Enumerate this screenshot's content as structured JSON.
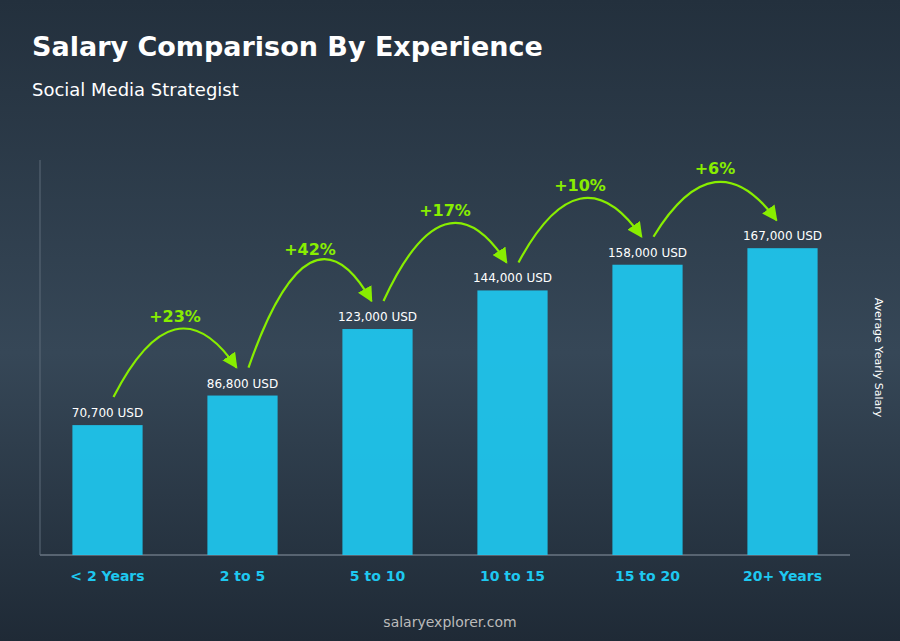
{
  "chart_data": {
    "type": "bar",
    "title": "Salary Comparison By Experience",
    "subtitle": "Social Media Strategist",
    "ylabel": "Average Yearly Salary",
    "categories": [
      "< 2 Years",
      "2 to 5",
      "5 to 10",
      "10 to 15",
      "15 to 20",
      "20+ Years"
    ],
    "values": [
      70700,
      86800,
      123000,
      144000,
      158000,
      167000
    ],
    "value_labels": [
      "70,700 USD",
      "86,800 USD",
      "123,000 USD",
      "144,000 USD",
      "158,000 USD",
      "167,000 USD"
    ],
    "data_labels": true,
    "color": "#1EC8F0",
    "ylim": [
      0,
      215000
    ],
    "tick_labels": "x",
    "grid": false,
    "annotations": [
      {
        "text": "+23%",
        "color": "#88EE00"
      },
      {
        "text": "+42%",
        "color": "#88EE00"
      },
      {
        "text": "+17%",
        "color": "#88EE00"
      },
      {
        "text": "+10%",
        "color": "#88EE00"
      },
      {
        "text": "+6%",
        "color": "#88EE00"
      }
    ],
    "watermark": "salaryexplorer.com"
  }
}
